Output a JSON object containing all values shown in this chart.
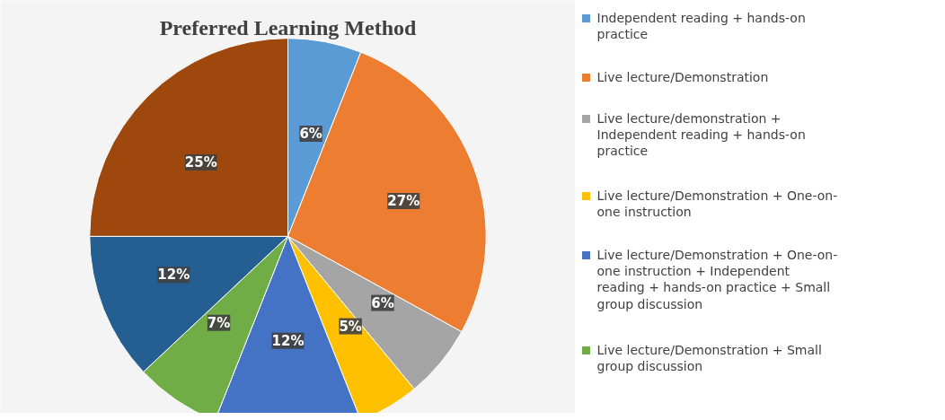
{
  "chart_data": {
    "type": "pie",
    "title": "Preferred Learning Method",
    "categories": [
      "Independent reading + hands-on practice",
      "Live lecture/Demonstration",
      "Live lecture/demonstration + Independent reading + hands-on practice",
      "Live lecture/Demonstration + One-on-one instruction",
      "Live lecture/Demonstration + One-on-one instruction + Independent reading + hands-on practice + Small group discussion",
      "Live lecture/Demonstration + Small group discussion",
      null,
      null
    ],
    "values": [
      6,
      27,
      6,
      5,
      12,
      7,
      12,
      25
    ],
    "value_labels": [
      "6%",
      "27%",
      "6%",
      "5%",
      "12%",
      "7%",
      "12%",
      "25%"
    ],
    "colors": [
      "#5b9bd5",
      "#ed7d31",
      "#a5a5a5",
      "#ffc000",
      "#4472c4",
      "#70ad47",
      "#255e91",
      "#9e480e"
    ],
    "legend": "right"
  }
}
